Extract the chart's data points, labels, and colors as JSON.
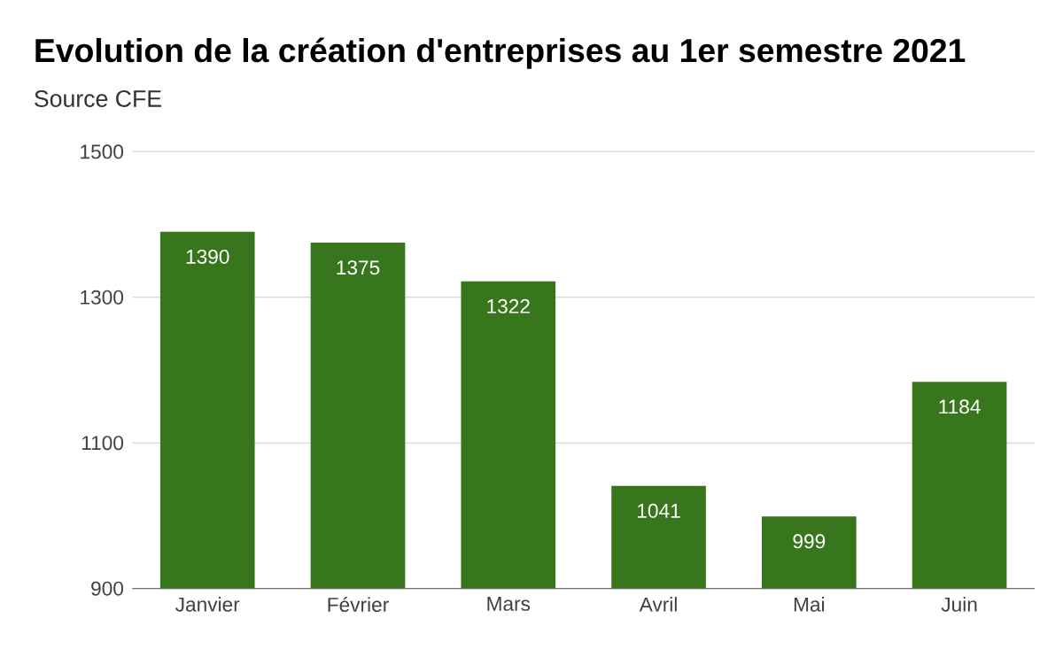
{
  "chart_data": {
    "type": "bar",
    "title": "Evolution de la création d'entreprises au 1er semestre 2021",
    "subtitle": "Source CFE",
    "categories": [
      "Janvier",
      "Février",
      "Mars",
      "Avril",
      "Mai",
      "Juin"
    ],
    "values": [
      1390,
      1375,
      1322,
      1041,
      999,
      1184
    ],
    "color": "#38761d",
    "ylim": [
      900,
      1500
    ],
    "yticks": [
      900,
      1100,
      1300,
      1500
    ],
    "grid": "y",
    "data_labels": true
  }
}
